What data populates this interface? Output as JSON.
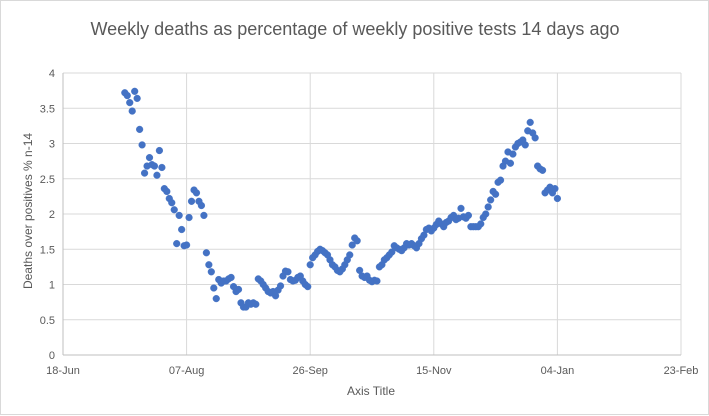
{
  "chart_data": {
    "type": "scatter",
    "title": "Weekly deaths as percentage of weekly positive tests 14 days ago",
    "xlabel": "Axis Title",
    "ylabel": "Deaths over positives % n-14",
    "x_axis": {
      "type": "date",
      "min": "2020-06-18",
      "max": "2021-02-23",
      "ticks": [
        "2020-06-18",
        "2020-08-07",
        "2020-09-26",
        "2020-11-15",
        "2021-01-04",
        "2021-02-23"
      ],
      "tick_labels": [
        "18-Jun",
        "07-Aug",
        "26-Sep",
        "15-Nov",
        "04-Jan",
        "23-Feb"
      ]
    },
    "ylim": [
      0,
      4
    ],
    "y_ticks": [
      0,
      0.5,
      1,
      1.5,
      2,
      2.5,
      3,
      3.5,
      4
    ],
    "y_tick_labels": [
      "0",
      "0.5",
      "1",
      "1.5",
      "2",
      "2.5",
      "3",
      "3.5",
      "4"
    ],
    "grid": true,
    "marker_color": "#4472c4",
    "series": [
      {
        "points": [
          [
            "2020-07-13",
            3.72
          ],
          [
            "2020-07-14",
            3.68
          ],
          [
            "2020-07-15",
            3.58
          ],
          [
            "2020-07-16",
            3.46
          ],
          [
            "2020-07-17",
            3.74
          ],
          [
            "2020-07-18",
            3.64
          ],
          [
            "2020-07-19",
            3.2
          ],
          [
            "2020-07-20",
            2.98
          ],
          [
            "2020-07-21",
            2.58
          ],
          [
            "2020-07-22",
            2.68
          ],
          [
            "2020-07-23",
            2.8
          ],
          [
            "2020-07-24",
            2.7
          ],
          [
            "2020-07-25",
            2.68
          ],
          [
            "2020-07-26",
            2.55
          ],
          [
            "2020-07-27",
            2.9
          ],
          [
            "2020-07-28",
            2.66
          ],
          [
            "2020-07-29",
            2.36
          ],
          [
            "2020-07-30",
            2.32
          ],
          [
            "2020-07-31",
            2.22
          ],
          [
            "2020-08-01",
            2.16
          ],
          [
            "2020-08-02",
            2.06
          ],
          [
            "2020-08-03",
            1.58
          ],
          [
            "2020-08-04",
            1.98
          ],
          [
            "2020-08-05",
            1.78
          ],
          [
            "2020-08-06",
            1.55
          ],
          [
            "2020-08-07",
            1.56
          ],
          [
            "2020-08-08",
            1.95
          ],
          [
            "2020-08-09",
            2.18
          ],
          [
            "2020-08-10",
            2.34
          ],
          [
            "2020-08-11",
            2.3
          ],
          [
            "2020-08-12",
            2.18
          ],
          [
            "2020-08-13",
            2.12
          ],
          [
            "2020-08-14",
            1.98
          ],
          [
            "2020-08-15",
            1.45
          ],
          [
            "2020-08-16",
            1.28
          ],
          [
            "2020-08-17",
            1.18
          ],
          [
            "2020-08-18",
            0.95
          ],
          [
            "2020-08-19",
            0.8
          ],
          [
            "2020-08-20",
            1.07
          ],
          [
            "2020-08-21",
            1.02
          ],
          [
            "2020-08-22",
            1.05
          ],
          [
            "2020-08-23",
            1.05
          ],
          [
            "2020-08-24",
            1.08
          ],
          [
            "2020-08-25",
            1.1
          ],
          [
            "2020-08-26",
            0.97
          ],
          [
            "2020-08-27",
            0.9
          ],
          [
            "2020-08-28",
            0.93
          ],
          [
            "2020-08-29",
            0.74
          ],
          [
            "2020-08-30",
            0.68
          ],
          [
            "2020-08-31",
            0.68
          ],
          [
            "2020-09-01",
            0.74
          ],
          [
            "2020-09-02",
            0.72
          ],
          [
            "2020-09-03",
            0.74
          ],
          [
            "2020-09-04",
            0.72
          ],
          [
            "2020-09-05",
            1.08
          ],
          [
            "2020-09-06",
            1.05
          ],
          [
            "2020-09-07",
            1.0
          ],
          [
            "2020-09-08",
            0.95
          ],
          [
            "2020-09-09",
            0.9
          ],
          [
            "2020-09-10",
            0.88
          ],
          [
            "2020-09-11",
            0.9
          ],
          [
            "2020-09-12",
            0.84
          ],
          [
            "2020-09-13",
            0.92
          ],
          [
            "2020-09-14",
            0.98
          ],
          [
            "2020-09-15",
            1.12
          ],
          [
            "2020-09-16",
            1.19
          ],
          [
            "2020-09-17",
            1.18
          ],
          [
            "2020-09-18",
            1.07
          ],
          [
            "2020-09-19",
            1.05
          ],
          [
            "2020-09-20",
            1.06
          ],
          [
            "2020-09-21",
            1.1
          ],
          [
            "2020-09-22",
            1.12
          ],
          [
            "2020-09-23",
            1.05
          ],
          [
            "2020-09-24",
            1.0
          ],
          [
            "2020-09-25",
            0.97
          ],
          [
            "2020-09-26",
            1.28
          ],
          [
            "2020-09-27",
            1.38
          ],
          [
            "2020-09-28",
            1.42
          ],
          [
            "2020-09-29",
            1.47
          ],
          [
            "2020-09-30",
            1.5
          ],
          [
            "2020-10-01",
            1.48
          ],
          [
            "2020-10-02",
            1.45
          ],
          [
            "2020-10-03",
            1.42
          ],
          [
            "2020-10-04",
            1.35
          ],
          [
            "2020-10-05",
            1.28
          ],
          [
            "2020-10-06",
            1.25
          ],
          [
            "2020-10-07",
            1.2
          ],
          [
            "2020-10-08",
            1.18
          ],
          [
            "2020-10-09",
            1.22
          ],
          [
            "2020-10-10",
            1.28
          ],
          [
            "2020-10-11",
            1.35
          ],
          [
            "2020-10-12",
            1.42
          ],
          [
            "2020-10-13",
            1.56
          ],
          [
            "2020-10-14",
            1.66
          ],
          [
            "2020-10-15",
            1.62
          ],
          [
            "2020-10-16",
            1.2
          ],
          [
            "2020-10-17",
            1.12
          ],
          [
            "2020-10-18",
            1.1
          ],
          [
            "2020-10-19",
            1.12
          ],
          [
            "2020-10-20",
            1.06
          ],
          [
            "2020-10-21",
            1.04
          ],
          [
            "2020-10-22",
            1.06
          ],
          [
            "2020-10-23",
            1.05
          ],
          [
            "2020-10-24",
            1.25
          ],
          [
            "2020-10-25",
            1.28
          ],
          [
            "2020-10-26",
            1.35
          ],
          [
            "2020-10-27",
            1.38
          ],
          [
            "2020-10-28",
            1.42
          ],
          [
            "2020-10-29",
            1.46
          ],
          [
            "2020-10-30",
            1.55
          ],
          [
            "2020-10-31",
            1.52
          ],
          [
            "2020-11-01",
            1.5
          ],
          [
            "2020-11-02",
            1.48
          ],
          [
            "2020-11-03",
            1.52
          ],
          [
            "2020-11-04",
            1.58
          ],
          [
            "2020-11-05",
            1.56
          ],
          [
            "2020-11-06",
            1.58
          ],
          [
            "2020-11-07",
            1.55
          ],
          [
            "2020-11-08",
            1.52
          ],
          [
            "2020-11-09",
            1.58
          ],
          [
            "2020-11-10",
            1.65
          ],
          [
            "2020-11-11",
            1.7
          ],
          [
            "2020-11-12",
            1.78
          ],
          [
            "2020-11-13",
            1.8
          ],
          [
            "2020-11-14",
            1.76
          ],
          [
            "2020-11-15",
            1.8
          ],
          [
            "2020-11-16",
            1.85
          ],
          [
            "2020-11-17",
            1.9
          ],
          [
            "2020-11-18",
            1.86
          ],
          [
            "2020-11-19",
            1.82
          ],
          [
            "2020-11-20",
            1.88
          ],
          [
            "2020-11-21",
            1.9
          ],
          [
            "2020-11-22",
            1.95
          ],
          [
            "2020-11-23",
            1.98
          ],
          [
            "2020-11-24",
            1.92
          ],
          [
            "2020-11-25",
            1.94
          ],
          [
            "2020-11-26",
            2.08
          ],
          [
            "2020-11-27",
            1.96
          ],
          [
            "2020-11-28",
            1.94
          ],
          [
            "2020-11-29",
            1.98
          ],
          [
            "2020-11-30",
            1.82
          ],
          [
            "2020-12-01",
            1.82
          ],
          [
            "2020-12-02",
            1.82
          ],
          [
            "2020-12-03",
            1.82
          ],
          [
            "2020-12-04",
            1.86
          ],
          [
            "2020-12-05",
            1.95
          ],
          [
            "2020-12-06",
            2.0
          ],
          [
            "2020-12-07",
            2.1
          ],
          [
            "2020-12-08",
            2.2
          ],
          [
            "2020-12-09",
            2.32
          ],
          [
            "2020-12-10",
            2.28
          ],
          [
            "2020-12-11",
            2.45
          ],
          [
            "2020-12-12",
            2.48
          ],
          [
            "2020-12-13",
            2.68
          ],
          [
            "2020-12-14",
            2.75
          ],
          [
            "2020-12-15",
            2.88
          ],
          [
            "2020-12-16",
            2.72
          ],
          [
            "2020-12-17",
            2.85
          ],
          [
            "2020-12-18",
            2.95
          ],
          [
            "2020-12-19",
            3.0
          ],
          [
            "2020-12-20",
            3.02
          ],
          [
            "2020-12-21",
            3.05
          ],
          [
            "2020-12-22",
            2.98
          ],
          [
            "2020-12-23",
            3.18
          ],
          [
            "2020-12-24",
            3.3
          ],
          [
            "2020-12-25",
            3.15
          ],
          [
            "2020-12-26",
            3.08
          ],
          [
            "2020-12-27",
            2.68
          ],
          [
            "2020-12-28",
            2.64
          ],
          [
            "2020-12-29",
            2.62
          ],
          [
            "2020-12-30",
            2.3
          ],
          [
            "2020-12-31",
            2.34
          ],
          [
            "2021-01-01",
            2.38
          ],
          [
            "2021-01-02",
            2.3
          ],
          [
            "2021-01-03",
            2.36
          ],
          [
            "2021-01-04",
            2.22
          ]
        ]
      }
    ]
  }
}
